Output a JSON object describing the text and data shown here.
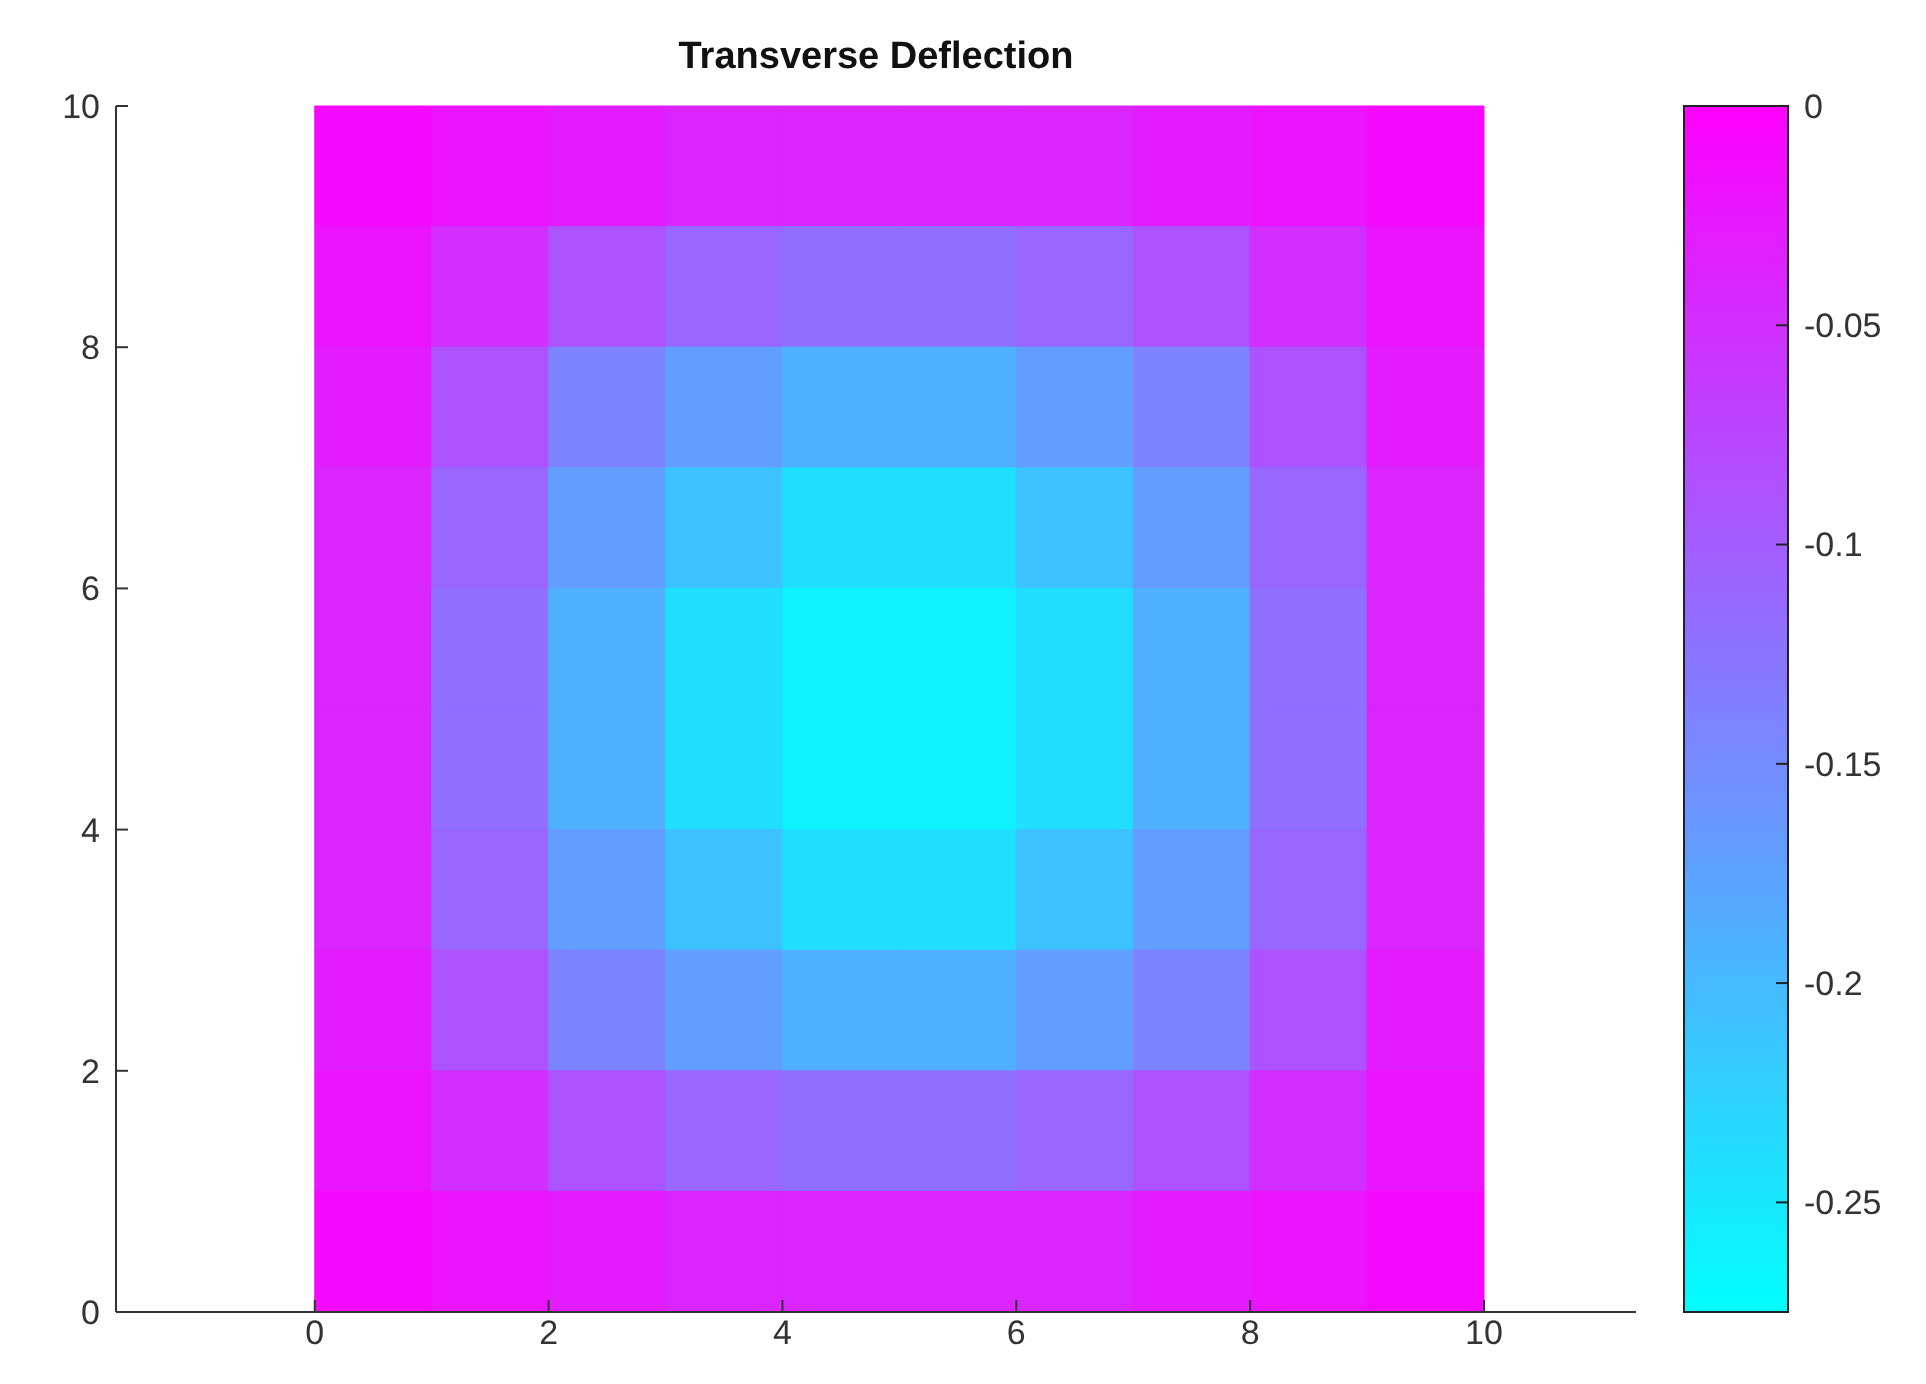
{
  "chart_data": {
    "type": "heatmap",
    "title": "Transverse Deflection",
    "x": [
      0.5,
      1.5,
      2.5,
      3.5,
      4.5,
      5.5,
      6.5,
      7.5,
      8.5,
      9.5
    ],
    "y": [
      9.5,
      8.5,
      7.5,
      6.5,
      5.5,
      4.5,
      3.5,
      2.5,
      1.5,
      0.5
    ],
    "cells": [
      [
        -0.01,
        -0.02,
        -0.03,
        -0.04,
        -0.04,
        -0.04,
        -0.04,
        -0.03,
        -0.02,
        -0.01
      ],
      [
        -0.02,
        -0.05,
        -0.09,
        -0.11,
        -0.12,
        -0.12,
        -0.11,
        -0.09,
        -0.05,
        -0.02
      ],
      [
        -0.03,
        -0.09,
        -0.14,
        -0.17,
        -0.19,
        -0.19,
        -0.17,
        -0.14,
        -0.09,
        -0.03
      ],
      [
        -0.04,
        -0.11,
        -0.17,
        -0.21,
        -0.24,
        -0.24,
        -0.21,
        -0.17,
        -0.11,
        -0.04
      ],
      [
        -0.04,
        -0.12,
        -0.19,
        -0.24,
        -0.26,
        -0.26,
        -0.24,
        -0.19,
        -0.12,
        -0.04
      ],
      [
        -0.04,
        -0.12,
        -0.19,
        -0.24,
        -0.26,
        -0.26,
        -0.24,
        -0.19,
        -0.12,
        -0.04
      ],
      [
        -0.04,
        -0.11,
        -0.17,
        -0.21,
        -0.24,
        -0.24,
        -0.21,
        -0.17,
        -0.11,
        -0.04
      ],
      [
        -0.03,
        -0.09,
        -0.14,
        -0.17,
        -0.19,
        -0.19,
        -0.17,
        -0.14,
        -0.09,
        -0.03
      ],
      [
        -0.02,
        -0.05,
        -0.09,
        -0.11,
        -0.12,
        -0.12,
        -0.11,
        -0.09,
        -0.05,
        -0.02
      ],
      [
        -0.01,
        -0.02,
        -0.03,
        -0.04,
        -0.04,
        -0.04,
        -0.04,
        -0.03,
        -0.02,
        -0.01
      ]
    ],
    "colors": [
      "#00ffff",
      "#ff00ff"
    ],
    "clim": [
      -0.275,
      0
    ],
    "cticks": [
      0,
      -0.05,
      -0.1,
      -0.15,
      -0.2,
      -0.25
    ],
    "xlim": [
      -1.7,
      11.3
    ],
    "xticks": [
      0,
      2,
      4,
      6,
      8,
      10
    ],
    "ylim": [
      0,
      10
    ],
    "yticks": [
      0,
      2,
      4,
      6,
      8,
      10
    ]
  }
}
